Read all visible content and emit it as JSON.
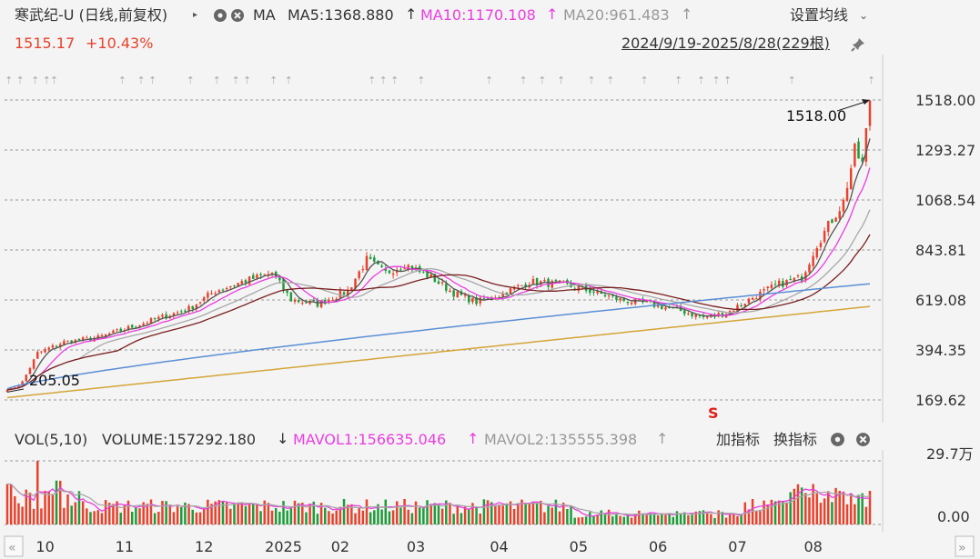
{
  "header": {
    "title": "寒武纪-U (日线,前复权)",
    "ma_label": "MA",
    "ma5": "MA5:1368.880",
    "ma10": "MA10:1170.108",
    "ma20": "MA20:961.483",
    "settings": "设置均线",
    "price": "1515.17",
    "change": "+10.43%",
    "range": "2024/9/19-2025/8/28(229根)"
  },
  "volume_header": {
    "label": "VOL(5,10)",
    "volume": "VOLUME:157292.180",
    "mavol1": "MAVOL1:156635.046",
    "mavol2": "MAVOL2:135555.398",
    "add_indicator": "加指标",
    "switch_indicator": "换指标"
  },
  "colors": {
    "up": "#e8412c",
    "down": "#1e9b3a",
    "ma5": "#555555",
    "ma10": "#e93ee0",
    "ma20": "#a8a8a8",
    "ma30": "#7a1f1f",
    "ma60": "#5b8fd6",
    "ma120": "#d4a537",
    "arrow": "#222222"
  },
  "chart_data": {
    "type": "candlestick",
    "y_ticks": [
      "1518.00",
      "1293.27",
      "1068.54",
      "843.81",
      "619.08",
      "394.35",
      "169.62"
    ],
    "ylim": [
      169.62,
      1518.0
    ],
    "vol_ticks": [
      "29.7万",
      "0.00"
    ],
    "x_labels": [
      "10",
      "11",
      "12",
      "2025",
      "02",
      "03",
      "04",
      "05",
      "06",
      "07",
      "08"
    ],
    "high_label": "1518.00",
    "low_label": "205.05",
    "signal_marker": "S",
    "anchors": [
      {
        "i": 0,
        "p": 205
      },
      {
        "i": 4,
        "p": 250
      },
      {
        "i": 8,
        "p": 380
      },
      {
        "i": 15,
        "p": 430
      },
      {
        "i": 24,
        "p": 450
      },
      {
        "i": 36,
        "p": 515
      },
      {
        "i": 48,
        "p": 580
      },
      {
        "i": 55,
        "p": 660
      },
      {
        "i": 62,
        "p": 700
      },
      {
        "i": 70,
        "p": 740
      },
      {
        "i": 75,
        "p": 620
      },
      {
        "i": 82,
        "p": 600
      },
      {
        "i": 90,
        "p": 660
      },
      {
        "i": 95,
        "p": 800
      },
      {
        "i": 100,
        "p": 740
      },
      {
        "i": 105,
        "p": 780
      },
      {
        "i": 112,
        "p": 720
      },
      {
        "i": 118,
        "p": 650
      },
      {
        "i": 124,
        "p": 610
      },
      {
        "i": 130,
        "p": 640
      },
      {
        "i": 138,
        "p": 700
      },
      {
        "i": 146,
        "p": 690
      },
      {
        "i": 154,
        "p": 660
      },
      {
        "i": 162,
        "p": 620
      },
      {
        "i": 170,
        "p": 600
      },
      {
        "i": 178,
        "p": 570
      },
      {
        "i": 184,
        "p": 540
      },
      {
        "i": 190,
        "p": 560
      },
      {
        "i": 198,
        "p": 640
      },
      {
        "i": 204,
        "p": 690
      },
      {
        "i": 210,
        "p": 720
      },
      {
        "i": 214,
        "p": 870
      },
      {
        "i": 218,
        "p": 980
      },
      {
        "i": 221,
        "p": 1060
      },
      {
        "i": 224,
        "p": 1290
      },
      {
        "i": 226,
        "p": 1230
      },
      {
        "i": 228,
        "p": 1515
      }
    ]
  }
}
